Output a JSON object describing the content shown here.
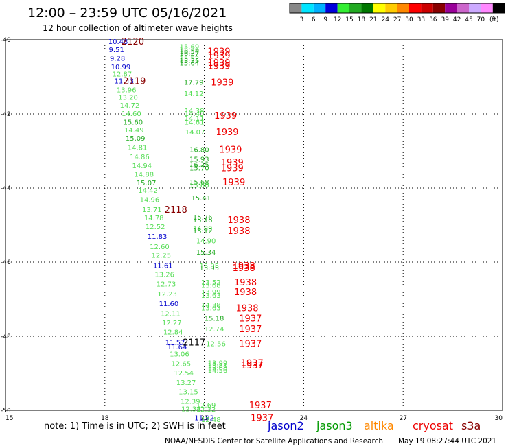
{
  "header": {
    "title": "12:00 – 23:59 UTC 05/16/2021",
    "subtitle": "12 hour collection of altimeter wave heights"
  },
  "colorbar": {
    "labels": [
      "3",
      "6",
      "9",
      "12",
      "15",
      "18",
      "21",
      "24",
      "27",
      "30",
      "33",
      "36",
      "39",
      "42",
      "45",
      "70"
    ],
    "unit": "(ft)",
    "colors": [
      "#888888",
      "#00e5ff",
      "#00b0ff",
      "#0000dd",
      "#33ee33",
      "#22aa22",
      "#007700",
      "#ffff00",
      "#ffcc00",
      "#ff8800",
      "#ff0000",
      "#cc0000",
      "#880000",
      "#990099",
      "#cc66cc",
      "#ccaaff",
      "#ff88ff",
      "#000000"
    ]
  },
  "footer": {
    "note": "note: 1) Time is in UTC; 2) SWH is in feet",
    "legend": [
      {
        "label": "jason2",
        "color": "#0000cc"
      },
      {
        "label": "jason3",
        "color": "#009900"
      },
      {
        "label": "altika",
        "color": "#ff8800"
      },
      {
        "label": "cryosat",
        "color": "#ee0000"
      },
      {
        "label": "s3a",
        "color": "#880000"
      }
    ],
    "credit": "NOAA/NESDIS Center for Satellite Applications and Research",
    "timestamp": "May 19 08:27:44 UTC 2021"
  },
  "chart_data": {
    "type": "scatter",
    "title": "12:00 – 23:59 UTC 05/16/2021",
    "subtitle": "12 hour collection of altimeter wave heights",
    "xlim": [
      15,
      30
    ],
    "ylim": [
      -50,
      -40
    ],
    "xticks": [
      15,
      18,
      21,
      24,
      27,
      30
    ],
    "yticks": [
      -40,
      -42,
      -44,
      -46,
      -48,
      -50
    ],
    "grid": true,
    "legend_position": "bottom",
    "points": [
      {
        "x": 18.4,
        "y": -40.04,
        "v": "10.48",
        "c": "#0000cc"
      },
      {
        "x": 18.35,
        "y": -40.26,
        "v": "9.51",
        "c": "#0000cc"
      },
      {
        "x": 18.38,
        "y": -40.49,
        "v": "9.28",
        "c": "#0000cc"
      },
      {
        "x": 18.48,
        "y": -40.72,
        "v": "10.99",
        "c": "#0000cc"
      },
      {
        "x": 18.52,
        "y": -40.92,
        "v": "12.87",
        "c": "#55dd55"
      },
      {
        "x": 18.58,
        "y": -41.1,
        "v": "11.43",
        "c": "#0000cc"
      },
      {
        "x": 18.65,
        "y": -41.34,
        "v": "13.96",
        "c": "#55dd55"
      },
      {
        "x": 18.7,
        "y": -41.55,
        "v": "13.20",
        "c": "#55dd55"
      },
      {
        "x": 18.75,
        "y": -41.76,
        "v": "14.72",
        "c": "#55dd55"
      },
      {
        "x": 18.8,
        "y": -41.98,
        "v": "14.60",
        "c": "#55dd55"
      },
      {
        "x": 18.85,
        "y": -42.21,
        "v": "15.60",
        "c": "#22aa22"
      },
      {
        "x": 18.88,
        "y": -42.43,
        "v": "14.49",
        "c": "#55dd55"
      },
      {
        "x": 18.92,
        "y": -42.65,
        "v": "15.09",
        "c": "#22aa22"
      },
      {
        "x": 18.98,
        "y": -42.9,
        "v": "14.81",
        "c": "#55dd55"
      },
      {
        "x": 19.05,
        "y": -43.15,
        "v": "14.86",
        "c": "#55dd55"
      },
      {
        "x": 19.12,
        "y": -43.39,
        "v": "14.94",
        "c": "#55dd55"
      },
      {
        "x": 19.18,
        "y": -43.62,
        "v": "14.88",
        "c": "#55dd55"
      },
      {
        "x": 19.25,
        "y": -43.85,
        "v": "15.07",
        "c": "#22aa22"
      },
      {
        "x": 19.3,
        "y": -44.06,
        "v": "14.42",
        "c": "#55dd55"
      },
      {
        "x": 19.35,
        "y": -44.31,
        "v": "14.96",
        "c": "#55dd55"
      },
      {
        "x": 19.42,
        "y": -44.57,
        "v": "13.71",
        "c": "#55dd55"
      },
      {
        "x": 19.48,
        "y": -44.8,
        "v": "14.78",
        "c": "#55dd55"
      },
      {
        "x": 19.52,
        "y": -45.04,
        "v": "12.52",
        "c": "#55dd55"
      },
      {
        "x": 19.58,
        "y": -45.3,
        "v": "11.83",
        "c": "#0000cc"
      },
      {
        "x": 19.65,
        "y": -45.57,
        "v": "12.60",
        "c": "#55dd55"
      },
      {
        "x": 19.7,
        "y": -45.81,
        "v": "12.25",
        "c": "#55dd55"
      },
      {
        "x": 19.75,
        "y": -46.08,
        "v": "11.61",
        "c": "#0000cc"
      },
      {
        "x": 19.8,
        "y": -46.32,
        "v": "13.26",
        "c": "#55dd55"
      },
      {
        "x": 19.85,
        "y": -46.58,
        "v": "12.73",
        "c": "#55dd55"
      },
      {
        "x": 19.88,
        "y": -46.85,
        "v": "12.23",
        "c": "#55dd55"
      },
      {
        "x": 19.93,
        "y": -47.11,
        "v": "11.60",
        "c": "#0000cc"
      },
      {
        "x": 19.98,
        "y": -47.38,
        "v": "12.11",
        "c": "#55dd55"
      },
      {
        "x": 20.02,
        "y": -47.63,
        "v": "12.27",
        "c": "#55dd55"
      },
      {
        "x": 20.06,
        "y": -47.88,
        "v": "12.84",
        "c": "#55dd55"
      },
      {
        "x": 20.12,
        "y": -48.16,
        "v": "11.57",
        "c": "#0000cc"
      },
      {
        "x": 20.18,
        "y": -48.28,
        "v": "11.64",
        "c": "#0000cc"
      },
      {
        "x": 20.25,
        "y": -48.47,
        "v": "13.06",
        "c": "#55dd55"
      },
      {
        "x": 20.3,
        "y": -48.73,
        "v": "12.65",
        "c": "#55dd55"
      },
      {
        "x": 20.38,
        "y": -48.98,
        "v": "12.54",
        "c": "#55dd55"
      },
      {
        "x": 20.45,
        "y": -49.24,
        "v": "13.27",
        "c": "#55dd55"
      },
      {
        "x": 20.52,
        "y": -49.49,
        "v": "13.15",
        "c": "#55dd55"
      },
      {
        "x": 20.58,
        "y": -49.75,
        "v": "12.39",
        "c": "#55dd55"
      },
      {
        "x": 20.6,
        "y": -49.95,
        "v": "12.34",
        "c": "#55dd55"
      },
      {
        "x": 21.05,
        "y": -49.85,
        "v": "12.69",
        "c": "#55dd55"
      },
      {
        "x": 21.05,
        "y": -49.96,
        "v": "12.32",
        "c": "#55dd55"
      },
      {
        "x": 21.0,
        "y": -50.19,
        "v": "11.92",
        "c": "#0000cc"
      },
      {
        "x": 21.2,
        "y": -50.24,
        "v": "12.48",
        "c": "#55dd55"
      },
      {
        "x": 20.55,
        "y": -40.18,
        "v": "15.69",
        "c": "#55dd55"
      },
      {
        "x": 20.55,
        "y": -40.25,
        "v": "15.76",
        "c": "#55dd55"
      },
      {
        "x": 20.55,
        "y": -40.3,
        "v": "16.54",
        "c": "#22aa22"
      },
      {
        "x": 20.55,
        "y": -40.35,
        "v": "16.27",
        "c": "#22aa22"
      },
      {
        "x": 20.55,
        "y": -40.49,
        "v": "15.52",
        "c": "#55dd55"
      },
      {
        "x": 20.55,
        "y": -40.56,
        "v": "15.35",
        "c": "#22aa22"
      },
      {
        "x": 20.55,
        "y": -40.62,
        "v": "15.64",
        "c": "#22aa22"
      },
      {
        "x": 20.68,
        "y": -41.14,
        "v": "17.79",
        "c": "#22aa22"
      },
      {
        "x": 20.68,
        "y": -41.44,
        "v": "14.12",
        "c": "#55dd55"
      },
      {
        "x": 20.7,
        "y": -41.91,
        "v": "14.38",
        "c": "#55dd55"
      },
      {
        "x": 20.7,
        "y": -41.98,
        "v": "14.45",
        "c": "#55dd55"
      },
      {
        "x": 20.7,
        "y": -42.11,
        "v": "14.11",
        "c": "#55dd55"
      },
      {
        "x": 20.7,
        "y": -42.21,
        "v": "14.61",
        "c": "#55dd55"
      },
      {
        "x": 20.72,
        "y": -42.48,
        "v": "14.07",
        "c": "#55dd55"
      },
      {
        "x": 20.85,
        "y": -42.95,
        "v": "16.80",
        "c": "#22aa22"
      },
      {
        "x": 20.85,
        "y": -43.21,
        "v": "15.93",
        "c": "#22aa22"
      },
      {
        "x": 20.85,
        "y": -43.36,
        "v": "16.25",
        "c": "#22aa22"
      },
      {
        "x": 20.85,
        "y": -43.45,
        "v": "15.70",
        "c": "#22aa22"
      },
      {
        "x": 20.85,
        "y": -43.83,
        "v": "15.68",
        "c": "#22aa22"
      },
      {
        "x": 20.85,
        "y": -43.92,
        "v": "15.60",
        "c": "#55dd55"
      },
      {
        "x": 20.9,
        "y": -44.26,
        "v": "15.41",
        "c": "#22aa22"
      },
      {
        "x": 20.95,
        "y": -44.78,
        "v": "15.76",
        "c": "#22aa22"
      },
      {
        "x": 20.95,
        "y": -44.85,
        "v": "15.16",
        "c": "#22aa22"
      },
      {
        "x": 20.95,
        "y": -45.08,
        "v": "14.89",
        "c": "#55dd55"
      },
      {
        "x": 20.95,
        "y": -45.15,
        "v": "15.12",
        "c": "#22aa22"
      },
      {
        "x": 21.05,
        "y": -45.42,
        "v": "14.90",
        "c": "#55dd55"
      },
      {
        "x": 21.05,
        "y": -45.72,
        "v": "15.34",
        "c": "#22aa22"
      },
      {
        "x": 21.15,
        "y": -46.09,
        "v": "15.95",
        "c": "#55dd55"
      },
      {
        "x": 21.15,
        "y": -46.15,
        "v": "15.95",
        "c": "#22aa22"
      },
      {
        "x": 21.2,
        "y": -46.54,
        "v": "13.52",
        "c": "#55dd55"
      },
      {
        "x": 21.2,
        "y": -46.62,
        "v": "13.68",
        "c": "#55dd55"
      },
      {
        "x": 21.2,
        "y": -46.8,
        "v": "13.99",
        "c": "#55dd55"
      },
      {
        "x": 21.2,
        "y": -46.89,
        "v": "13.63",
        "c": "#55dd55"
      },
      {
        "x": 21.2,
        "y": -47.15,
        "v": "14.38",
        "c": "#55dd55"
      },
      {
        "x": 21.2,
        "y": -47.23,
        "v": "13.63",
        "c": "#55dd55"
      },
      {
        "x": 21.3,
        "y": -47.51,
        "v": "15.18",
        "c": "#22aa22"
      },
      {
        "x": 21.3,
        "y": -47.8,
        "v": "12.74",
        "c": "#55dd55"
      },
      {
        "x": 21.35,
        "y": -48.19,
        "v": "12.56",
        "c": "#55dd55"
      },
      {
        "x": 21.4,
        "y": -48.71,
        "v": "13.99",
        "c": "#55dd55"
      },
      {
        "x": 21.4,
        "y": -48.78,
        "v": "13.81",
        "c": "#55dd55"
      },
      {
        "x": 21.4,
        "y": -48.84,
        "v": "13.68",
        "c": "#55dd55"
      },
      {
        "x": 21.4,
        "y": -48.91,
        "v": "14.56",
        "c": "#55dd55"
      }
    ],
    "passes": [
      {
        "label": "2120",
        "x": 18.5,
        "y": -40.04,
        "c": "#880000"
      },
      {
        "label": "2119",
        "x": 18.55,
        "y": -41.1,
        "c": "#880000"
      },
      {
        "label": "2118",
        "x": 19.8,
        "y": -44.57,
        "c": "#880000"
      },
      {
        "label": "2117",
        "x": 20.35,
        "y": -48.16,
        "c": "#000000"
      },
      {
        "label": "1939",
        "x": 21.1,
        "y": -40.31,
        "c": "#ee0000"
      },
      {
        "label": "1939",
        "x": 21.1,
        "y": -40.42,
        "c": "#ee0000"
      },
      {
        "label": "1939",
        "x": 21.1,
        "y": -40.61,
        "c": "#ee0000"
      },
      {
        "label": "1939",
        "x": 21.1,
        "y": -40.69,
        "c": "#ee0000"
      },
      {
        "label": "1939",
        "x": 21.2,
        "y": -41.14,
        "c": "#ee0000"
      },
      {
        "label": "1939",
        "x": 21.3,
        "y": -42.04,
        "c": "#ee0000"
      },
      {
        "label": "1939",
        "x": 21.35,
        "y": -42.48,
        "c": "#ee0000"
      },
      {
        "label": "1939",
        "x": 21.45,
        "y": -42.95,
        "c": "#ee0000"
      },
      {
        "label": "1939",
        "x": 21.5,
        "y": -43.3,
        "c": "#ee0000"
      },
      {
        "label": "1939",
        "x": 21.5,
        "y": -43.45,
        "c": "#ee0000"
      },
      {
        "label": "1939",
        "x": 21.55,
        "y": -43.83,
        "c": "#ee0000"
      },
      {
        "label": "1938",
        "x": 21.7,
        "y": -44.85,
        "c": "#ee0000"
      },
      {
        "label": "1938",
        "x": 21.7,
        "y": -45.15,
        "c": "#ee0000"
      },
      {
        "label": "1938",
        "x": 21.85,
        "y": -46.09,
        "c": "#ee0000"
      },
      {
        "label": "1938",
        "x": 21.85,
        "y": -46.15,
        "c": "#ee0000"
      },
      {
        "label": "1938",
        "x": 21.9,
        "y": -46.54,
        "c": "#ee0000"
      },
      {
        "label": "1938",
        "x": 21.9,
        "y": -46.8,
        "c": "#ee0000"
      },
      {
        "label": "1938",
        "x": 21.95,
        "y": -47.23,
        "c": "#ee0000"
      },
      {
        "label": "1937",
        "x": 22.05,
        "y": -47.51,
        "c": "#ee0000"
      },
      {
        "label": "1937",
        "x": 22.05,
        "y": -47.8,
        "c": "#ee0000"
      },
      {
        "label": "1937",
        "x": 22.05,
        "y": -48.19,
        "c": "#ee0000"
      },
      {
        "label": "1937",
        "x": 22.1,
        "y": -48.71,
        "c": "#ee0000"
      },
      {
        "label": "1937",
        "x": 22.1,
        "y": -48.78,
        "c": "#ee0000"
      },
      {
        "label": "1937",
        "x": 22.35,
        "y": -49.85,
        "c": "#ee0000"
      },
      {
        "label": "1937",
        "x": 22.4,
        "y": -50.19,
        "c": "#ee0000"
      }
    ]
  }
}
